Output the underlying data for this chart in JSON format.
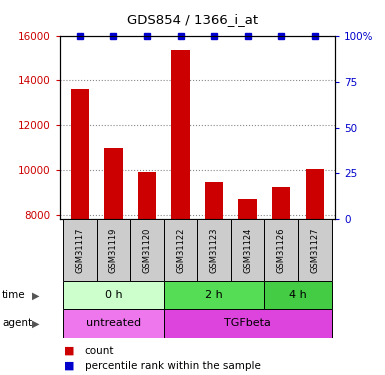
{
  "title": "GDS854 / 1366_i_at",
  "samples": [
    "GSM31117",
    "GSM31119",
    "GSM31120",
    "GSM31122",
    "GSM31123",
    "GSM31124",
    "GSM31126",
    "GSM31127"
  ],
  "counts": [
    13600,
    11000,
    9900,
    15350,
    9450,
    8700,
    9250,
    10050
  ],
  "percentiles": [
    100,
    100,
    100,
    100,
    100,
    100,
    100,
    100
  ],
  "ylim_left": [
    7800,
    16000
  ],
  "ylim_right": [
    0,
    100
  ],
  "yticks_left": [
    8000,
    10000,
    12000,
    14000,
    16000
  ],
  "yticks_right": [
    0,
    25,
    50,
    75,
    100
  ],
  "bar_color": "#cc0000",
  "dot_color": "#0000cc",
  "time_groups": [
    {
      "label": "0 h",
      "start": 0,
      "end": 3,
      "color": "#ccffcc"
    },
    {
      "label": "2 h",
      "start": 3,
      "end": 6,
      "color": "#55dd55"
    },
    {
      "label": "4 h",
      "start": 6,
      "end": 8,
      "color": "#44cc44"
    }
  ],
  "agent_groups": [
    {
      "label": "untreated",
      "start": 0,
      "end": 3,
      "color": "#ee77ee"
    },
    {
      "label": "TGFbeta",
      "start": 3,
      "end": 8,
      "color": "#dd44dd"
    }
  ],
  "time_label": "time",
  "agent_label": "agent",
  "legend_count_label": "count",
  "legend_pct_label": "percentile rank within the sample",
  "bg_color": "#ffffff",
  "axis_label_color_left": "#cc0000",
  "axis_label_color_right": "#0000cc",
  "grid_color": "#888888",
  "sample_box_color": "#cccccc"
}
